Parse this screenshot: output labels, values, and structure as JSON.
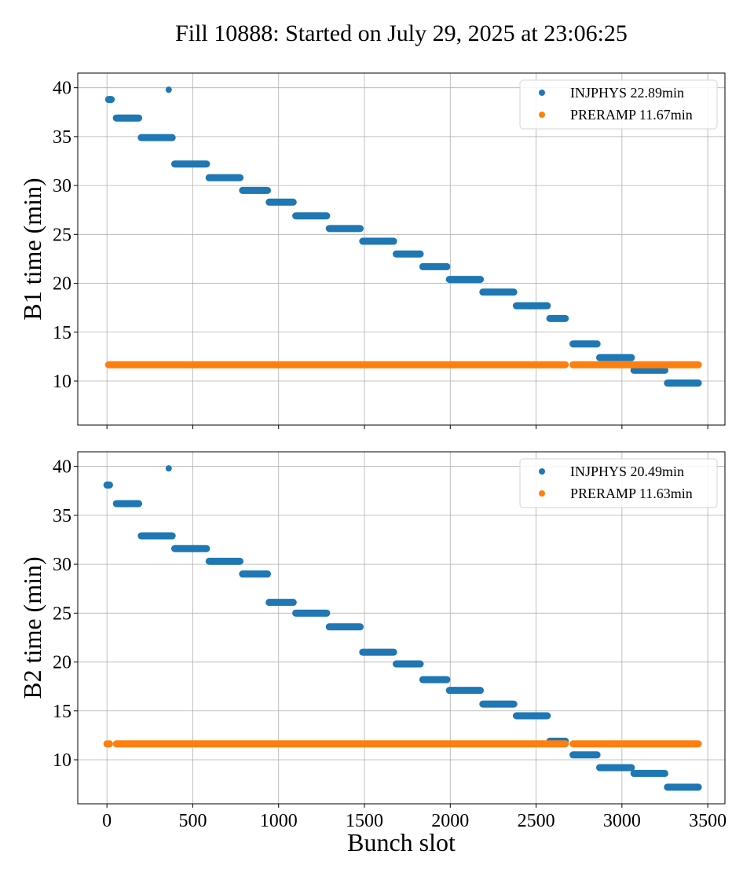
{
  "chart_data": {
    "type": "scatter",
    "title": "Fill 10888: Started on July 29, 2025 at 23:06:25",
    "xlabel": "Bunch slot",
    "xlim": [
      -170,
      3600
    ],
    "xticks": [
      0,
      500,
      1000,
      1500,
      2000,
      2500,
      3000,
      3500
    ],
    "grid": true,
    "colors": {
      "INJPHYS": "#1f77b4",
      "PRERAMP": "#ff7f0e"
    },
    "panels": [
      {
        "ylabel": "B1 time (min)",
        "ylim": [
          5.5,
          41.5
        ],
        "yticks": [
          10,
          15,
          20,
          25,
          30,
          35,
          40
        ],
        "legend_position": "top-right",
        "series": [
          {
            "name": "INJPHYS 22.89min",
            "key": "INJPHYS",
            "segments": [
              {
                "x0": 10,
                "x1": 25,
                "y": 38.8
              },
              {
                "x0": 360,
                "x1": 360,
                "y": 39.8
              },
              {
                "x0": 55,
                "x1": 185,
                "y": 36.9
              },
              {
                "x0": 200,
                "x1": 380,
                "y": 34.9
              },
              {
                "x0": 395,
                "x1": 580,
                "y": 32.2
              },
              {
                "x0": 595,
                "x1": 775,
                "y": 30.8
              },
              {
                "x0": 790,
                "x1": 935,
                "y": 29.5
              },
              {
                "x0": 945,
                "x1": 1085,
                "y": 28.3
              },
              {
                "x0": 1100,
                "x1": 1280,
                "y": 26.9
              },
              {
                "x0": 1295,
                "x1": 1475,
                "y": 25.6
              },
              {
                "x0": 1490,
                "x1": 1670,
                "y": 24.3
              },
              {
                "x0": 1685,
                "x1": 1825,
                "y": 23.0
              },
              {
                "x0": 1840,
                "x1": 1980,
                "y": 21.7
              },
              {
                "x0": 1995,
                "x1": 2175,
                "y": 20.4
              },
              {
                "x0": 2190,
                "x1": 2370,
                "y": 19.1
              },
              {
                "x0": 2385,
                "x1": 2565,
                "y": 17.7
              },
              {
                "x0": 2580,
                "x1": 2670,
                "y": 16.4
              },
              {
                "x0": 2715,
                "x1": 2855,
                "y": 13.8
              },
              {
                "x0": 2870,
                "x1": 3055,
                "y": 12.4
              },
              {
                "x0": 3070,
                "x1": 3250,
                "y": 11.1
              },
              {
                "x0": 3265,
                "x1": 3445,
                "y": 9.8
              }
            ]
          },
          {
            "name": "PRERAMP 11.67min",
            "key": "PRERAMP",
            "segments": [
              {
                "x0": 10,
                "x1": 2670,
                "y": 11.67
              },
              {
                "x0": 2715,
                "x1": 3445,
                "y": 11.67
              }
            ]
          }
        ]
      },
      {
        "ylabel": "B2 time (min)",
        "ylim": [
          5.5,
          41.5
        ],
        "yticks": [
          10,
          15,
          20,
          25,
          30,
          35,
          40
        ],
        "legend_position": "top-right",
        "series": [
          {
            "name": "INJPHYS 20.49min",
            "key": "INJPHYS",
            "segments": [
              {
                "x0": 0,
                "x1": 15,
                "y": 38.1
              },
              {
                "x0": 360,
                "x1": 360,
                "y": 39.8
              },
              {
                "x0": 55,
                "x1": 185,
                "y": 36.2
              },
              {
                "x0": 200,
                "x1": 380,
                "y": 32.9
              },
              {
                "x0": 395,
                "x1": 580,
                "y": 31.6
              },
              {
                "x0": 595,
                "x1": 775,
                "y": 30.3
              },
              {
                "x0": 790,
                "x1": 935,
                "y": 29.0
              },
              {
                "x0": 945,
                "x1": 1085,
                "y": 26.1
              },
              {
                "x0": 1100,
                "x1": 1280,
                "y": 25.0
              },
              {
                "x0": 1295,
                "x1": 1475,
                "y": 23.6
              },
              {
                "x0": 1490,
                "x1": 1670,
                "y": 21.0
              },
              {
                "x0": 1685,
                "x1": 1825,
                "y": 19.8
              },
              {
                "x0": 1840,
                "x1": 1980,
                "y": 18.2
              },
              {
                "x0": 1995,
                "x1": 2175,
                "y": 17.1
              },
              {
                "x0": 2190,
                "x1": 2370,
                "y": 15.7
              },
              {
                "x0": 2385,
                "x1": 2565,
                "y": 14.5
              },
              {
                "x0": 2580,
                "x1": 2670,
                "y": 11.9
              },
              {
                "x0": 2715,
                "x1": 2855,
                "y": 10.5
              },
              {
                "x0": 2870,
                "x1": 3055,
                "y": 9.2
              },
              {
                "x0": 3070,
                "x1": 3250,
                "y": 8.6
              },
              {
                "x0": 3265,
                "x1": 3445,
                "y": 7.2
              }
            ]
          },
          {
            "name": "PRERAMP 11.63min",
            "key": "PRERAMP",
            "segments": [
              {
                "x0": 0,
                "x1": 15,
                "y": 11.63
              },
              {
                "x0": 55,
                "x1": 2670,
                "y": 11.63
              },
              {
                "x0": 2715,
                "x1": 3445,
                "y": 11.63
              }
            ]
          }
        ]
      }
    ]
  }
}
